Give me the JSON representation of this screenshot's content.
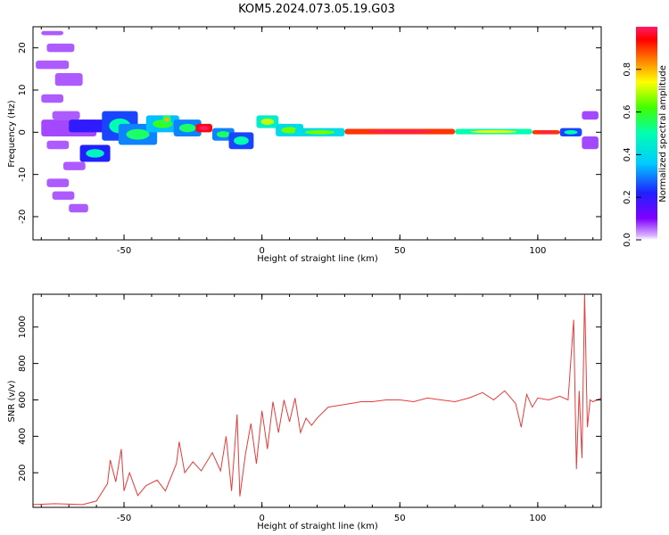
{
  "figure": {
    "title": "KOM5.2024.073.05.19.G03"
  },
  "chart_data": [
    {
      "type": "heatmap",
      "xlabel": "Height of straight line (km)",
      "ylabel": "Frequency (Hz)",
      "xlim": [
        -83,
        123
      ],
      "ylim": [
        -25.5,
        25
      ],
      "xticks": [
        -50,
        0,
        50,
        100
      ],
      "yticks": [
        -20,
        -10,
        0,
        10,
        20
      ],
      "colorbar": {
        "label": "Normalized spectral amplitude",
        "ticks": [
          0.0,
          0.2,
          0.4,
          0.6,
          0.8
        ],
        "range": [
          0,
          1
        ],
        "colormap": "rainbow"
      },
      "blobs": [
        {
          "x": [
            -80,
            -72
          ],
          "y": [
            23,
            24
          ],
          "v": 0.05
        },
        {
          "x": [
            -78,
            -68
          ],
          "y": [
            19,
            21
          ],
          "v": 0.05
        },
        {
          "x": [
            -82,
            -70
          ],
          "y": [
            15,
            17
          ],
          "v": 0.05
        },
        {
          "x": [
            -75,
            -65
          ],
          "y": [
            11,
            14
          ],
          "v": 0.05
        },
        {
          "x": [
            -80,
            -72
          ],
          "y": [
            7,
            9
          ],
          "v": 0.05
        },
        {
          "x": [
            -76,
            -66
          ],
          "y": [
            3,
            5
          ],
          "v": 0.05
        },
        {
          "x": [
            -80,
            -60
          ],
          "y": [
            -1,
            3
          ],
          "v": 0.06
        },
        {
          "x": [
            -78,
            -70
          ],
          "y": [
            -4,
            -2
          ],
          "v": 0.05
        },
        {
          "x": [
            -72,
            -64
          ],
          "y": [
            -9,
            -7
          ],
          "v": 0.05
        },
        {
          "x": [
            -78,
            -70
          ],
          "y": [
            -13,
            -11
          ],
          "v": 0.05
        },
        {
          "x": [
            -76,
            -68
          ],
          "y": [
            -16,
            -14
          ],
          "v": 0.05
        },
        {
          "x": [
            -70,
            -63
          ],
          "y": [
            -19,
            -17
          ],
          "v": 0.05
        },
        {
          "x": [
            -66,
            -55
          ],
          "y": [
            -7,
            -3
          ],
          "v": 0.22
        },
        {
          "x": [
            -70,
            -55
          ],
          "y": [
            0,
            3
          ],
          "v": 0.2
        },
        {
          "x": [
            -58,
            -45
          ],
          "y": [
            -2,
            5
          ],
          "v": 0.25
        },
        {
          "x": [
            -52,
            -38
          ],
          "y": [
            -3,
            2
          ],
          "v": 0.3
        },
        {
          "x": [
            -42,
            -30
          ],
          "y": [
            0,
            4
          ],
          "v": 0.35
        },
        {
          "x": [
            -36,
            -33
          ],
          "y": [
            2,
            4
          ],
          "v": 0.55
        },
        {
          "x": [
            -32,
            -22
          ],
          "y": [
            -1,
            3
          ],
          "v": 0.3
        },
        {
          "x": [
            -24,
            -18
          ],
          "y": [
            0,
            2
          ],
          "v": 0.95
        },
        {
          "x": [
            -18,
            -10
          ],
          "y": [
            -2,
            1
          ],
          "v": 0.3
        },
        {
          "x": [
            -12,
            -3
          ],
          "y": [
            -4,
            0
          ],
          "v": 0.25
        },
        {
          "x": [
            -2,
            6
          ],
          "y": [
            1,
            4
          ],
          "v": 0.45
        },
        {
          "x": [
            5,
            15
          ],
          "y": [
            -1,
            2
          ],
          "v": 0.4
        },
        {
          "x": [
            12,
            30
          ],
          "y": [
            -1,
            1
          ],
          "v": 0.4
        },
        {
          "x": [
            30,
            70
          ],
          "y": [
            -0.5,
            0.8
          ],
          "v": 0.9
        },
        {
          "x": [
            70,
            98
          ],
          "y": [
            -0.5,
            0.8
          ],
          "v": 0.5
        },
        {
          "x": [
            98,
            108
          ],
          "y": [
            -0.5,
            0.5
          ],
          "v": 0.9
        },
        {
          "x": [
            108,
            116
          ],
          "y": [
            -1,
            1
          ],
          "v": 0.25
        },
        {
          "x": [
            116,
            122
          ],
          "y": [
            -4,
            -1
          ],
          "v": 0.06
        },
        {
          "x": [
            116,
            122
          ],
          "y": [
            3,
            5
          ],
          "v": 0.06
        }
      ]
    },
    {
      "type": "line",
      "xlabel": "Height of straight line (km)",
      "ylabel": "SNR (v/v)",
      "xlim": [
        -83,
        123
      ],
      "ylim": [
        10,
        1180
      ],
      "xticks": [
        -50,
        0,
        50,
        100
      ],
      "yticks": [
        200,
        400,
        600,
        800,
        1000
      ],
      "color": "#e63b3b",
      "x": [
        -83,
        -75,
        -65,
        -60,
        -56,
        -55,
        -53,
        -51,
        -50,
        -48,
        -45,
        -42,
        -38,
        -35,
        -31,
        -30,
        -28,
        -25,
        -22,
        -18,
        -15,
        -13,
        -11,
        -9,
        -8,
        -6,
        -4,
        -2,
        0,
        2,
        4,
        6,
        8,
        10,
        12,
        14,
        16,
        18,
        20,
        24,
        28,
        32,
        36,
        40,
        45,
        50,
        55,
        60,
        65,
        70,
        75,
        80,
        84,
        88,
        92,
        94,
        96,
        98,
        100,
        104,
        108,
        111,
        113,
        114,
        115,
        116,
        117,
        118,
        119,
        120,
        123
      ],
      "y": [
        25,
        30,
        25,
        45,
        140,
        270,
        150,
        330,
        100,
        200,
        75,
        130,
        160,
        100,
        250,
        370,
        200,
        260,
        210,
        310,
        210,
        400,
        100,
        520,
        70,
        300,
        470,
        250,
        540,
        330,
        590,
        420,
        600,
        480,
        610,
        420,
        500,
        460,
        500,
        560,
        570,
        580,
        590,
        590,
        600,
        600,
        590,
        610,
        600,
        590,
        610,
        640,
        600,
        650,
        580,
        450,
        630,
        560,
        610,
        600,
        620,
        600,
        1040,
        220,
        650,
        280,
        1180,
        450,
        600,
        590,
        610
      ]
    }
  ]
}
